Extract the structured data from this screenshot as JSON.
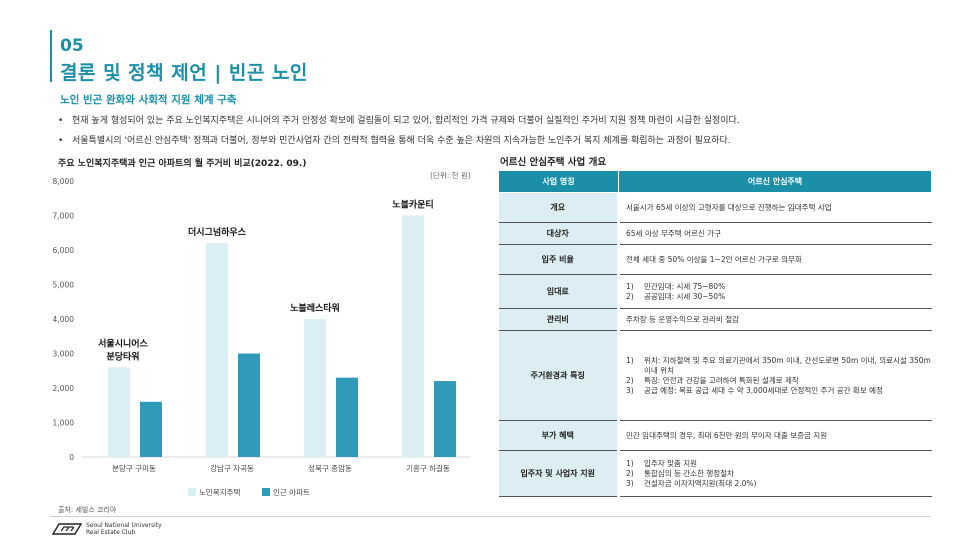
{
  "header": {
    "section_number": "05",
    "title": "결론 및 정책 제언 | 빈곤 노인",
    "subtitle": "노인 빈곤 완화와 사회적 지원 체계 구축"
  },
  "bullets": [
    "현재 높게 형성되어 있는 주요 노인복지주택은 시니어의 주거 안정성 확보에 걸림돌이 되고 있어, 합리적인 가격 규제와 더불어 실질적인 주거비 지원 정책 마련이 시급한 실정이다.",
    "서울특별시의 '어르신 안심주택' 정책과 더불어, 정부와 민간사업자 간의 전략적 협력을 통해 더욱 수준 높은 차원의 지속가능한 노인주거 복지 체계를 확립하는 과정이 필요하다."
  ],
  "chart": {
    "title": "주요 노인복지주택과 인근 아파트의 월 주거비 비교(2022. 09.)",
    "unit": "(단위: 천 원)",
    "source": "출처: 세빌스 코리아"
  },
  "chart_data": {
    "type": "bar",
    "title": "주요 노인복지주택과 인근 아파트의 월 주거비 비교(2022. 09.)",
    "categories": [
      "분당구 구미동",
      "강남구 자곡동",
      "성북구 종암동",
      "기흥구 하갈동"
    ],
    "series": [
      {
        "name": "노인복지주택",
        "values": [
          2600,
          6200,
          4000,
          7000
        ],
        "color": "#daeef4"
      },
      {
        "name": "인근 아파트",
        "values": [
          1600,
          3000,
          2300,
          2200
        ],
        "color": "#2f9bb8"
      }
    ],
    "annotations": [
      {
        "category": "분당구 구미동",
        "lines": [
          "서울시니어스",
          "분당타워"
        ]
      },
      {
        "category": "강남구 자곡동",
        "lines": [
          "더시그넘하우스"
        ]
      },
      {
        "category": "성북구 종암동",
        "lines": [
          "노블레스타워"
        ]
      },
      {
        "category": "기흥구 하갈동",
        "lines": [
          "노블카운티"
        ]
      }
    ],
    "ylim": [
      0,
      8000
    ],
    "yticks": [
      "0",
      "1,000",
      "2,000",
      "3,000",
      "4,000",
      "5,000",
      "6,000",
      "7,000",
      "8,000"
    ],
    "ytick_values": [
      0,
      1000,
      2000,
      3000,
      4000,
      5000,
      6000,
      7000,
      8000
    ],
    "grid": false,
    "legend": "bottom-center"
  },
  "table": {
    "title": "어르신 안심주택 사업 개요",
    "header": [
      "사업 명칭",
      "어르신 안심주택"
    ],
    "rows": [
      {
        "label": "개요",
        "lines": [
          "서울시가 65세 이상의 고령자를 대상으로 진행하는 임대주택 사업"
        ]
      },
      {
        "label": "대상자",
        "lines": [
          "65세 이상 무주택 어르신 가구"
        ]
      },
      {
        "label": "입주 비율",
        "lines": [
          "전체 세대 중 50% 이상을 1~2인 어르신 가구로 의무화"
        ]
      },
      {
        "label": "임대료",
        "items": [
          {
            "n": "1)",
            "t": "민간임대: 시세 75~80%"
          },
          {
            "n": "2)",
            "t": "공공임대: 시세 30~50%"
          }
        ]
      },
      {
        "label": "관리비",
        "lines": [
          "주차장 등 운영수익으로 관리비 절감"
        ]
      },
      {
        "label": "주거환경과 특징",
        "items": [
          {
            "n": "1)",
            "t": "위치: 지하철역 및 주요 의료기관에서 350m 이내, 간선도로변 50m 이내, 의료시설 350m 이내 위치"
          },
          {
            "n": "2)",
            "t": "특징: 안전과 건강을 고려하여 특화된 설계로 제작"
          },
          {
            "n": "3)",
            "t": "공급 예정: 목표 공급 세대 수 약 3,000세대로 안정적인 주거 공간 확보 예정"
          }
        ]
      },
      {
        "label": "부가 혜택",
        "lines": [
          "민간 임대주택의 경우, 최대 6천만 원의 무이자 대출 보증금 지원"
        ]
      },
      {
        "label": "입주자 및 사업자 지원",
        "items": [
          {
            "n": "1)",
            "t": "입주자 맞춤 지원"
          },
          {
            "n": "2)",
            "t": "통합심의 등 간소한 행정절차"
          },
          {
            "n": "3)",
            "t": "건설자금 이자지액지원(최대 2.0%)"
          }
        ]
      }
    ]
  },
  "logo": {
    "line1": "Seoul National University",
    "line2": "Real Estate Club"
  }
}
